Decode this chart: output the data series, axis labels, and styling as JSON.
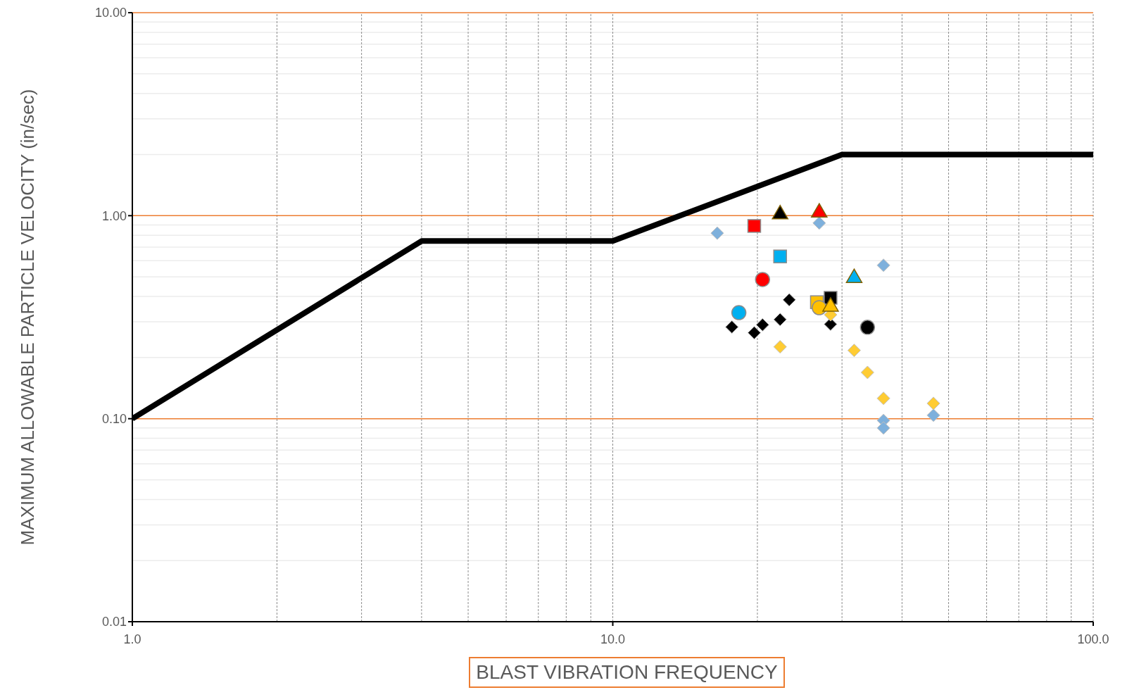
{
  "chart_data": {
    "type": "scatter",
    "xlabel": "BLAST VIBRATION FREQUENCY",
    "ylabel": "MAXIMUM ALLOWABLE PARTICLE VELOCITY (in/sec)",
    "log": "xy",
    "grid": true,
    "legend": false,
    "xlim": [
      1,
      100
    ],
    "xticks": [
      {
        "value": 1,
        "label": "1.0"
      },
      {
        "value": 10,
        "label": "10.0"
      },
      {
        "value": 100,
        "label": "100.0"
      }
    ],
    "ylim": [
      0.01,
      10
    ],
    "yticks": [
      0.01,
      {
        "value": 0.1,
        "label": "0.10"
      },
      {
        "value": 1,
        "label": "1.00"
      },
      {
        "value": 10,
        "label": "10.00"
      }
    ],
    "series": [
      {
        "type": "line",
        "color": "#000000",
        "marker": "none",
        "line_style": "solid",
        "x": [
          1,
          4,
          10,
          30,
          100
        ],
        "values": [
          0.1,
          0.75,
          0.75,
          2,
          2
        ]
      },
      {
        "color": "#7eb0dc",
        "marker": "diamond",
        "x": [
          16.5,
          26.9,
          36.6,
          36.6,
          36.6,
          46.5
        ],
        "values": [
          0.82,
          0.92,
          0.57,
          0.098,
          0.09,
          0.104
        ]
      },
      {
        "color": "#000000",
        "marker": "diamond",
        "x": [
          17.7,
          19.7,
          20.5,
          22.3,
          23.3,
          28.4
        ],
        "values": [
          0.283,
          0.265,
          0.29,
          0.308,
          0.385,
          0.292
        ]
      },
      {
        "color": "#ffcc33",
        "marker": "diamond",
        "x": [
          22.3,
          28.4,
          31.8,
          33.9,
          36.6,
          46.5
        ],
        "values": [
          0.226,
          0.325,
          0.217,
          0.169,
          0.126,
          0.119
        ]
      },
      {
        "color": "#ff0000",
        "marker": "square",
        "x": [
          19.7
        ],
        "values": [
          0.89
        ]
      },
      {
        "color": "#000000",
        "marker": "triangle",
        "x": [
          22.3
        ],
        "values": [
          1.03
        ]
      },
      {
        "color": "#ff0000",
        "marker": "triangle",
        "x": [
          26.9
        ],
        "values": [
          1.05
        ]
      },
      {
        "color": "#00b0f0",
        "marker": "square",
        "x": [
          22.3
        ],
        "values": [
          0.63
        ]
      },
      {
        "color": "#ff0000",
        "marker": "circle",
        "x": [
          20.5
        ],
        "values": [
          0.485
        ]
      },
      {
        "color": "#00b0f0",
        "marker": "circle",
        "x": [
          18.3
        ],
        "values": [
          0.333
        ]
      },
      {
        "color": "#00b0f0",
        "marker": "triangle",
        "x": [
          31.8
        ],
        "values": [
          0.5
        ]
      },
      {
        "color": "#ffc000",
        "marker": "square",
        "x": [
          26.6
        ],
        "values": [
          0.375
        ]
      },
      {
        "color": "#000000",
        "marker": "square",
        "x": [
          28.4
        ],
        "values": [
          0.394
        ]
      },
      {
        "color": "#ffc000",
        "marker": "circle",
        "x": [
          26.9
        ],
        "values": [
          0.352
        ]
      },
      {
        "color": "#ffc000",
        "marker": "triangle",
        "x": [
          28.4
        ],
        "values": [
          0.361
        ]
      },
      {
        "color": "#000000",
        "marker": "circle",
        "x": [
          33.9
        ],
        "values": [
          0.282
        ]
      }
    ]
  }
}
